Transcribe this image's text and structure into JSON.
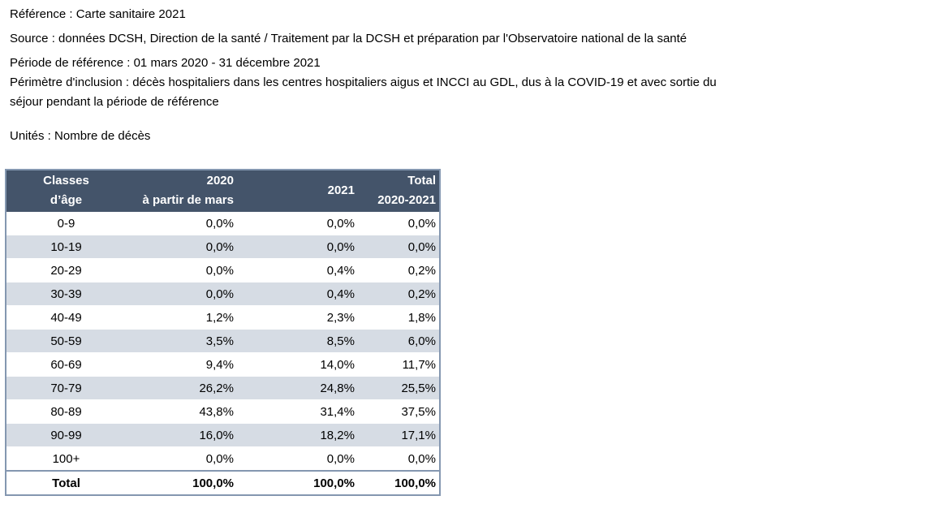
{
  "meta": {
    "reference": "Référence : Carte sanitaire 2021",
    "source": "Source : données DCSH, Direction de la santé / Traitement par la DCSH et préparation par l'Observatoire national de la santé",
    "period": "Période de référence : 01 mars 2020 - 31 décembre 2021",
    "perimeter_line1": "Périmètre d'inclusion : décès hospitaliers dans les centres hospitaliers aigus et INCCI au GDL, dus à la COVID-19 et avec sortie du",
    "perimeter_line2": "séjour pendant la période de référence",
    "units": "Unités : Nombre de décès"
  },
  "table": {
    "headers": {
      "age_line1": "Classes",
      "age_line2": "d’âge",
      "y2020_line1": "2020",
      "y2020_line2": "à partir de mars",
      "y2021": "2021",
      "total_line1": "Total",
      "total_line2": "2020-2021"
    },
    "colors": {
      "header_bg": "#44546a",
      "band_bg": "#d6dce4",
      "border": "#8497b0"
    },
    "rows": [
      {
        "age": "0-9",
        "y2020": "0,0%",
        "y2021": "0,0%",
        "total": "0,0%"
      },
      {
        "age": "10-19",
        "y2020": "0,0%",
        "y2021": "0,0%",
        "total": "0,0%"
      },
      {
        "age": "20-29",
        "y2020": "0,0%",
        "y2021": "0,4%",
        "total": "0,2%"
      },
      {
        "age": "30-39",
        "y2020": "0,0%",
        "y2021": "0,4%",
        "total": "0,2%"
      },
      {
        "age": "40-49",
        "y2020": "1,2%",
        "y2021": "2,3%",
        "total": "1,8%"
      },
      {
        "age": "50-59",
        "y2020": "3,5%",
        "y2021": "8,5%",
        "total": "6,0%"
      },
      {
        "age": "60-69",
        "y2020": "9,4%",
        "y2021": "14,0%",
        "total": "11,7%"
      },
      {
        "age": "70-79",
        "y2020": "26,2%",
        "y2021": "24,8%",
        "total": "25,5%"
      },
      {
        "age": "80-89",
        "y2020": "43,8%",
        "y2021": "31,4%",
        "total": "37,5%"
      },
      {
        "age": "90-99",
        "y2020": "16,0%",
        "y2021": "18,2%",
        "total": "17,1%"
      },
      {
        "age": "100+",
        "y2020": "0,0%",
        "y2021": "0,0%",
        "total": "0,0%"
      }
    ],
    "total": {
      "label": "Total",
      "y2020": "100,0%",
      "y2021": "100,0%",
      "total": "100,0%"
    }
  }
}
